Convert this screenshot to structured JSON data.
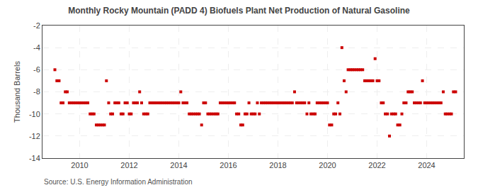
{
  "chart_data": {
    "type": "scatter",
    "title": "Monthly Rocky Mountain (PADD 4) Biofuels Plant Net Production of Natural Gasoline",
    "ylabel": "Thousand Barrels",
    "annotations": [
      "Source: U.S. Energy Information Administration"
    ],
    "color": "#cc0000",
    "marker": "square",
    "grid": true,
    "xlim": [
      2008.5,
      2025.5
    ],
    "xticks": [
      2010,
      2012,
      2014,
      2016,
      2018,
      2020,
      2022,
      2024
    ],
    "ylim": [
      -14,
      -2
    ],
    "yticks": [
      -14,
      -12,
      -10,
      -8,
      -6,
      -4,
      -2
    ],
    "x": [
      2009.0,
      2009.08,
      2009.17,
      2009.25,
      2009.33,
      2009.42,
      2009.5,
      2009.58,
      2009.67,
      2009.75,
      2009.83,
      2009.92,
      2010.0,
      2010.08,
      2010.17,
      2010.25,
      2010.33,
      2010.42,
      2010.5,
      2010.58,
      2010.67,
      2010.75,
      2010.83,
      2010.92,
      2011.0,
      2011.08,
      2011.17,
      2011.25,
      2011.33,
      2011.42,
      2011.5,
      2011.58,
      2011.67,
      2011.75,
      2011.83,
      2011.92,
      2012.0,
      2012.08,
      2012.17,
      2012.25,
      2012.33,
      2012.42,
      2012.5,
      2012.58,
      2012.67,
      2012.75,
      2012.83,
      2012.92,
      2013.0,
      2013.08,
      2013.17,
      2013.25,
      2013.33,
      2013.42,
      2013.5,
      2013.58,
      2013.67,
      2013.75,
      2013.83,
      2013.92,
      2014.0,
      2014.08,
      2014.17,
      2014.25,
      2014.33,
      2014.42,
      2014.5,
      2014.58,
      2014.67,
      2014.75,
      2014.83,
      2014.92,
      2015.0,
      2015.08,
      2015.17,
      2015.25,
      2015.33,
      2015.42,
      2015.5,
      2015.58,
      2015.67,
      2015.75,
      2015.83,
      2015.92,
      2016.0,
      2016.08,
      2016.17,
      2016.25,
      2016.33,
      2016.42,
      2016.5,
      2016.58,
      2016.67,
      2016.75,
      2016.83,
      2016.92,
      2017.0,
      2017.08,
      2017.17,
      2017.25,
      2017.33,
      2017.42,
      2017.5,
      2017.58,
      2017.67,
      2017.75,
      2017.83,
      2017.92,
      2018.0,
      2018.08,
      2018.17,
      2018.25,
      2018.33,
      2018.42,
      2018.5,
      2018.58,
      2018.67,
      2018.75,
      2018.83,
      2018.92,
      2019.0,
      2019.08,
      2019.17,
      2019.25,
      2019.33,
      2019.42,
      2019.5,
      2019.58,
      2019.67,
      2019.75,
      2019.83,
      2019.92,
      2020.0,
      2020.08,
      2020.17,
      2020.25,
      2020.33,
      2020.42,
      2020.5,
      2020.58,
      2020.67,
      2020.75,
      2020.83,
      2020.92,
      2021.0,
      2021.08,
      2021.17,
      2021.25,
      2021.33,
      2021.42,
      2021.5,
      2021.58,
      2021.67,
      2021.75,
      2021.83,
      2021.92,
      2022.0,
      2022.08,
      2022.17,
      2022.25,
      2022.33,
      2022.42,
      2022.5,
      2022.58,
      2022.67,
      2022.75,
      2022.83,
      2022.92,
      2023.0,
      2023.08,
      2023.17,
      2023.25,
      2023.33,
      2023.42,
      2023.5,
      2023.58,
      2023.67,
      2023.75,
      2023.83,
      2023.92,
      2024.0,
      2024.08,
      2024.17,
      2024.25,
      2024.33,
      2024.42,
      2024.5,
      2024.58,
      2024.67,
      2024.75,
      2024.83,
      2024.92,
      2025.0,
      2025.08,
      2025.17
    ],
    "values": [
      -6.0,
      -7.0,
      -7.0,
      -9.0,
      -9.0,
      -8.0,
      -8.0,
      -9.0,
      -9.0,
      -9.0,
      -9.0,
      -9.0,
      -9.0,
      -9.0,
      -9.0,
      -9.0,
      -9.0,
      -10.0,
      -10.0,
      -10.0,
      -11.0,
      -11.0,
      -11.0,
      -11.0,
      -11.0,
      -7.0,
      -9.0,
      -10.0,
      -10.0,
      -9.0,
      -9.0,
      -9.0,
      -10.0,
      -10.0,
      -9.0,
      -9.0,
      -10.0,
      -10.0,
      -9.0,
      -9.0,
      -9.0,
      -8.0,
      -9.0,
      -10.0,
      -10.0,
      -10.0,
      -9.0,
      -9.0,
      -9.0,
      -9.0,
      -9.0,
      -9.0,
      -9.0,
      -9.0,
      -9.0,
      -9.0,
      -9.0,
      -9.0,
      -9.0,
      -9.0,
      -9.0,
      -8.0,
      -9.0,
      -9.0,
      -9.0,
      -10.0,
      -10.0,
      -10.0,
      -10.0,
      -10.0,
      -10.0,
      -11.0,
      -9.0,
      -9.0,
      -10.0,
      -10.0,
      -10.0,
      -10.0,
      -10.0,
      -10.0,
      -9.0,
      -9.0,
      -9.0,
      -9.0,
      -9.0,
      -9.0,
      -9.0,
      -9.0,
      -10.0,
      -10.0,
      -11.0,
      -11.0,
      -10.0,
      -10.0,
      -9.0,
      -10.0,
      -10.0,
      -10.0,
      -9.0,
      -10.0,
      -9.0,
      -9.0,
      -9.0,
      -9.0,
      -9.0,
      -9.0,
      -9.0,
      -9.0,
      -9.0,
      -9.0,
      -9.0,
      -9.0,
      -9.0,
      -9.0,
      -9.0,
      -9.0,
      -8.0,
      -9.0,
      -9.0,
      -9.0,
      -9.0,
      -9.0,
      -10.0,
      -9.0,
      -10.0,
      -10.0,
      -10.0,
      -9.0,
      -9.0,
      -9.0,
      -9.0,
      -9.0,
      -9.0,
      -11.0,
      -11.0,
      -10.0,
      -10.0,
      -9.0,
      -10.0,
      -4.0,
      -7.0,
      -8.0,
      -6.0,
      -6.0,
      -6.0,
      -6.0,
      -6.0,
      -6.0,
      -6.0,
      -6.0,
      -7.0,
      -7.0,
      -7.0,
      -7.0,
      -7.0,
      -5.0,
      -7.0,
      -7.0,
      -9.0,
      -9.0,
      -10.0,
      -10.0,
      -12.0,
      -10.0,
      -10.0,
      -10.0,
      -11.0,
      -11.0,
      -10.0,
      -9.0,
      -9.0,
      -8.0,
      -8.0,
      -8.0,
      -9.0,
      -9.0,
      -9.0,
      -9.0,
      -7.0,
      -9.0,
      -9.0,
      -9.0,
      -9.0,
      -9.0,
      -9.0,
      -9.0,
      -9.0,
      -9.0,
      -8.0,
      -10.0,
      -10.0,
      -10.0,
      -10.0,
      -8.0,
      -8.0
    ]
  }
}
